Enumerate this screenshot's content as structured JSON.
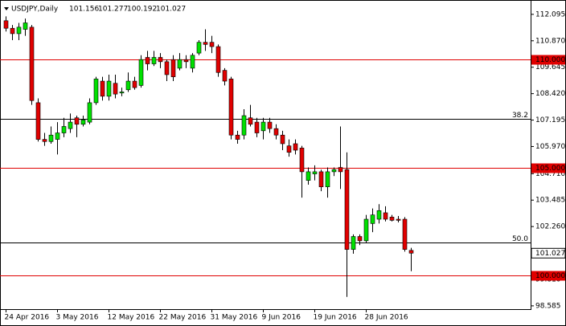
{
  "header": {
    "symbol": "USDJPY,Daily",
    "ohlc": [
      101.156,
      101.277,
      100.192,
      101.027
    ]
  },
  "chart_data": {
    "type": "candlestick",
    "categories": [
      "24 Apr 2016",
      null,
      null,
      null,
      null,
      null,
      null,
      null,
      "3 May 2016",
      null,
      null,
      null,
      null,
      null,
      null,
      null,
      "12 May 2016",
      null,
      null,
      null,
      null,
      null,
      null,
      null,
      "22 May 2016",
      null,
      null,
      null,
      null,
      null,
      null,
      null,
      "31 May 2016",
      null,
      null,
      null,
      null,
      null,
      null,
      null,
      "9 Jun 2016",
      null,
      null,
      null,
      null,
      null,
      null,
      null,
      "19 Jun 2016",
      null,
      null,
      null,
      null,
      null,
      null,
      null,
      "28 Jun 2016",
      null,
      null,
      null,
      null,
      null,
      null,
      null
    ],
    "open": [
      111.8,
      111.45,
      111.2,
      111.4,
      111.5,
      108.0,
      106.3,
      106.2,
      106.3,
      106.6,
      106.8,
      107.3,
      107.0,
      107.1,
      108.0,
      109.0,
      108.3,
      108.9,
      108.45,
      108.6,
      109.0,
      108.8,
      110.1,
      109.8,
      110.1,
      109.9,
      110.0,
      109.6,
      110.0,
      109.6,
      110.3,
      110.8,
      110.8,
      110.6,
      109.5,
      109.1,
      106.5,
      106.5,
      107.3,
      107.1,
      106.7,
      107.1,
      106.8,
      106.5,
      106.0,
      106.1,
      105.9,
      104.4,
      104.7,
      104.8,
      104.1,
      104.8,
      105.0,
      104.9,
      101.2,
      101.8,
      101.6,
      102.4,
      102.6,
      102.9,
      102.7,
      102.6,
      102.6,
      101.156
    ],
    "high": [
      112.0,
      111.6,
      111.7,
      111.9,
      111.6,
      108.2,
      106.6,
      106.9,
      107.1,
      107.3,
      107.5,
      107.4,
      107.4,
      108.2,
      109.2,
      109.2,
      109.3,
      109.3,
      108.7,
      109.4,
      109.2,
      110.2,
      110.4,
      110.4,
      110.3,
      110.0,
      110.2,
      110.3,
      110.2,
      110.3,
      110.9,
      111.4,
      111.1,
      110.7,
      109.6,
      109.2,
      106.7,
      107.7,
      107.9,
      107.3,
      107.3,
      107.3,
      107.0,
      106.7,
      106.3,
      106.3,
      106.0,
      105.0,
      105.1,
      104.9,
      105.0,
      105.0,
      106.9,
      105.7,
      101.9,
      101.9,
      102.8,
      103.1,
      103.3,
      103.2,
      102.8,
      102.75,
      102.7,
      101.277
    ],
    "low": [
      111.3,
      110.9,
      110.9,
      111.1,
      107.9,
      106.2,
      106.0,
      106.1,
      105.6,
      106.4,
      106.6,
      106.4,
      106.9,
      107.0,
      107.9,
      108.1,
      108.1,
      108.2,
      108.3,
      108.5,
      108.6,
      108.7,
      109.5,
      109.7,
      109.6,
      109.0,
      109.0,
      109.5,
      109.6,
      109.4,
      110.2,
      110.4,
      110.3,
      109.2,
      108.8,
      106.3,
      106.1,
      106.3,
      106.9,
      106.4,
      106.3,
      106.6,
      106.3,
      105.8,
      105.5,
      105.6,
      103.6,
      104.2,
      104.4,
      103.9,
      103.6,
      104.6,
      104.0,
      99.0,
      101.0,
      101.4,
      101.5,
      102.0,
      102.4,
      102.5,
      102.5,
      102.45,
      101.1,
      100.192
    ],
    "close": [
      111.45,
      111.2,
      111.5,
      111.7,
      108.1,
      106.3,
      106.2,
      106.5,
      106.6,
      106.9,
      107.1,
      107.0,
      107.2,
      108.0,
      109.1,
      108.3,
      109.0,
      108.4,
      108.5,
      109.0,
      108.7,
      110.0,
      109.8,
      110.1,
      109.9,
      109.3,
      109.2,
      110.0,
      109.9,
      110.2,
      110.8,
      110.7,
      110.6,
      109.4,
      109.0,
      106.5,
      106.3,
      107.4,
      107.0,
      106.6,
      107.1,
      106.8,
      106.5,
      106.1,
      105.7,
      105.8,
      104.8,
      104.8,
      104.8,
      104.1,
      104.8,
      104.9,
      104.8,
      101.2,
      101.8,
      101.6,
      102.6,
      102.8,
      103.0,
      102.6,
      102.55,
      102.55,
      101.2,
      101.027
    ],
    "up_color": "#00e000",
    "down_color": "#e00000",
    "ylim": [
      98.47,
      112.76
    ],
    "yticks": [
      112.095,
      {
        "value": 110.87,
        "label": "110.870"
      },
      109.645,
      {
        "value": 108.42,
        "label": "108.420"
      },
      107.195,
      {
        "value": 105.97,
        "label": "105.970"
      },
      {
        "value": 104.71,
        "label": "104.710"
      },
      103.485,
      {
        "value": 102.26,
        "label": "102.260"
      },
      {
        "value": 99.81,
        "label": "99.810"
      },
      98.585
    ],
    "levels": [
      {
        "value": 110,
        "label": "110.000",
        "color": "#e00000"
      },
      {
        "value": 105,
        "label": "105.000",
        "color": "#e00000"
      },
      {
        "value": 100,
        "label": "100.000",
        "color": "#e00000"
      }
    ],
    "fib_lines": [
      {
        "value": 107.26,
        "label": "38.2",
        "color": "#000000"
      },
      {
        "value": 101.525,
        "label": "50.0",
        "color": "#000000"
      }
    ],
    "last_price": 101.027
  }
}
